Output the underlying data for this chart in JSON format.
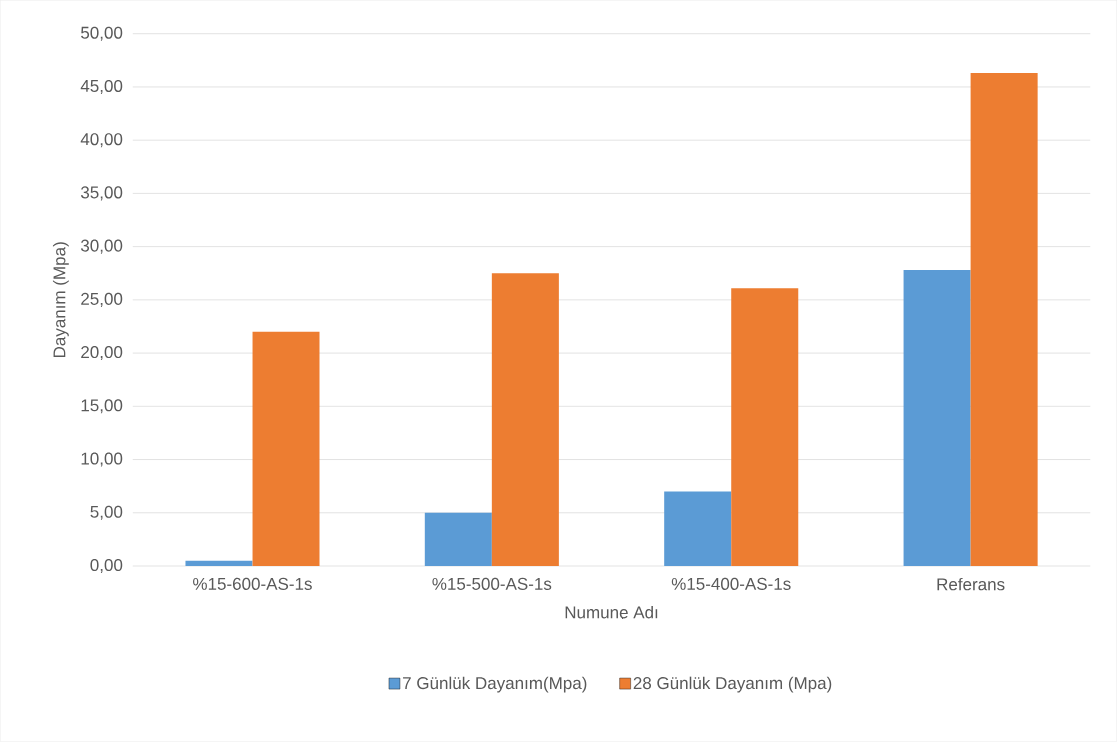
{
  "chart_data": {
    "type": "bar",
    "xlabel": "Numune Adı",
    "ylabel": "Dayanım (Mpa)",
    "categories": [
      "%15-600-AS-1s",
      "%15-500-AS-1s",
      "%15-400-AS-1s",
      "Referans"
    ],
    "series": [
      {
        "name": "7 Günlük Dayanım(Mpa)",
        "color": "#5b9bd5",
        "values": [
          0.5,
          5.0,
          7.0,
          27.8
        ]
      },
      {
        "name": "28 Günlük Dayanım (Mpa)",
        "color": "#ed7d31",
        "values": [
          22.0,
          27.5,
          26.1,
          46.3
        ]
      }
    ],
    "ylim": [
      0,
      50
    ],
    "yticks": [
      {
        "value": 0,
        "label": "0,00"
      },
      {
        "value": 5,
        "label": "5,00"
      },
      {
        "value": 10,
        "label": "10,00"
      },
      {
        "value": 15,
        "label": "15,00"
      },
      {
        "value": 20,
        "label": "20,00"
      },
      {
        "value": 25,
        "label": "25,00"
      },
      {
        "value": 30,
        "label": "30,00"
      },
      {
        "value": 35,
        "label": "35,00"
      },
      {
        "value": 40,
        "label": "40,00"
      },
      {
        "value": 45,
        "label": "45,00"
      },
      {
        "value": 50,
        "label": "50,00"
      }
    ],
    "grid": "y",
    "legend": "bottom"
  }
}
